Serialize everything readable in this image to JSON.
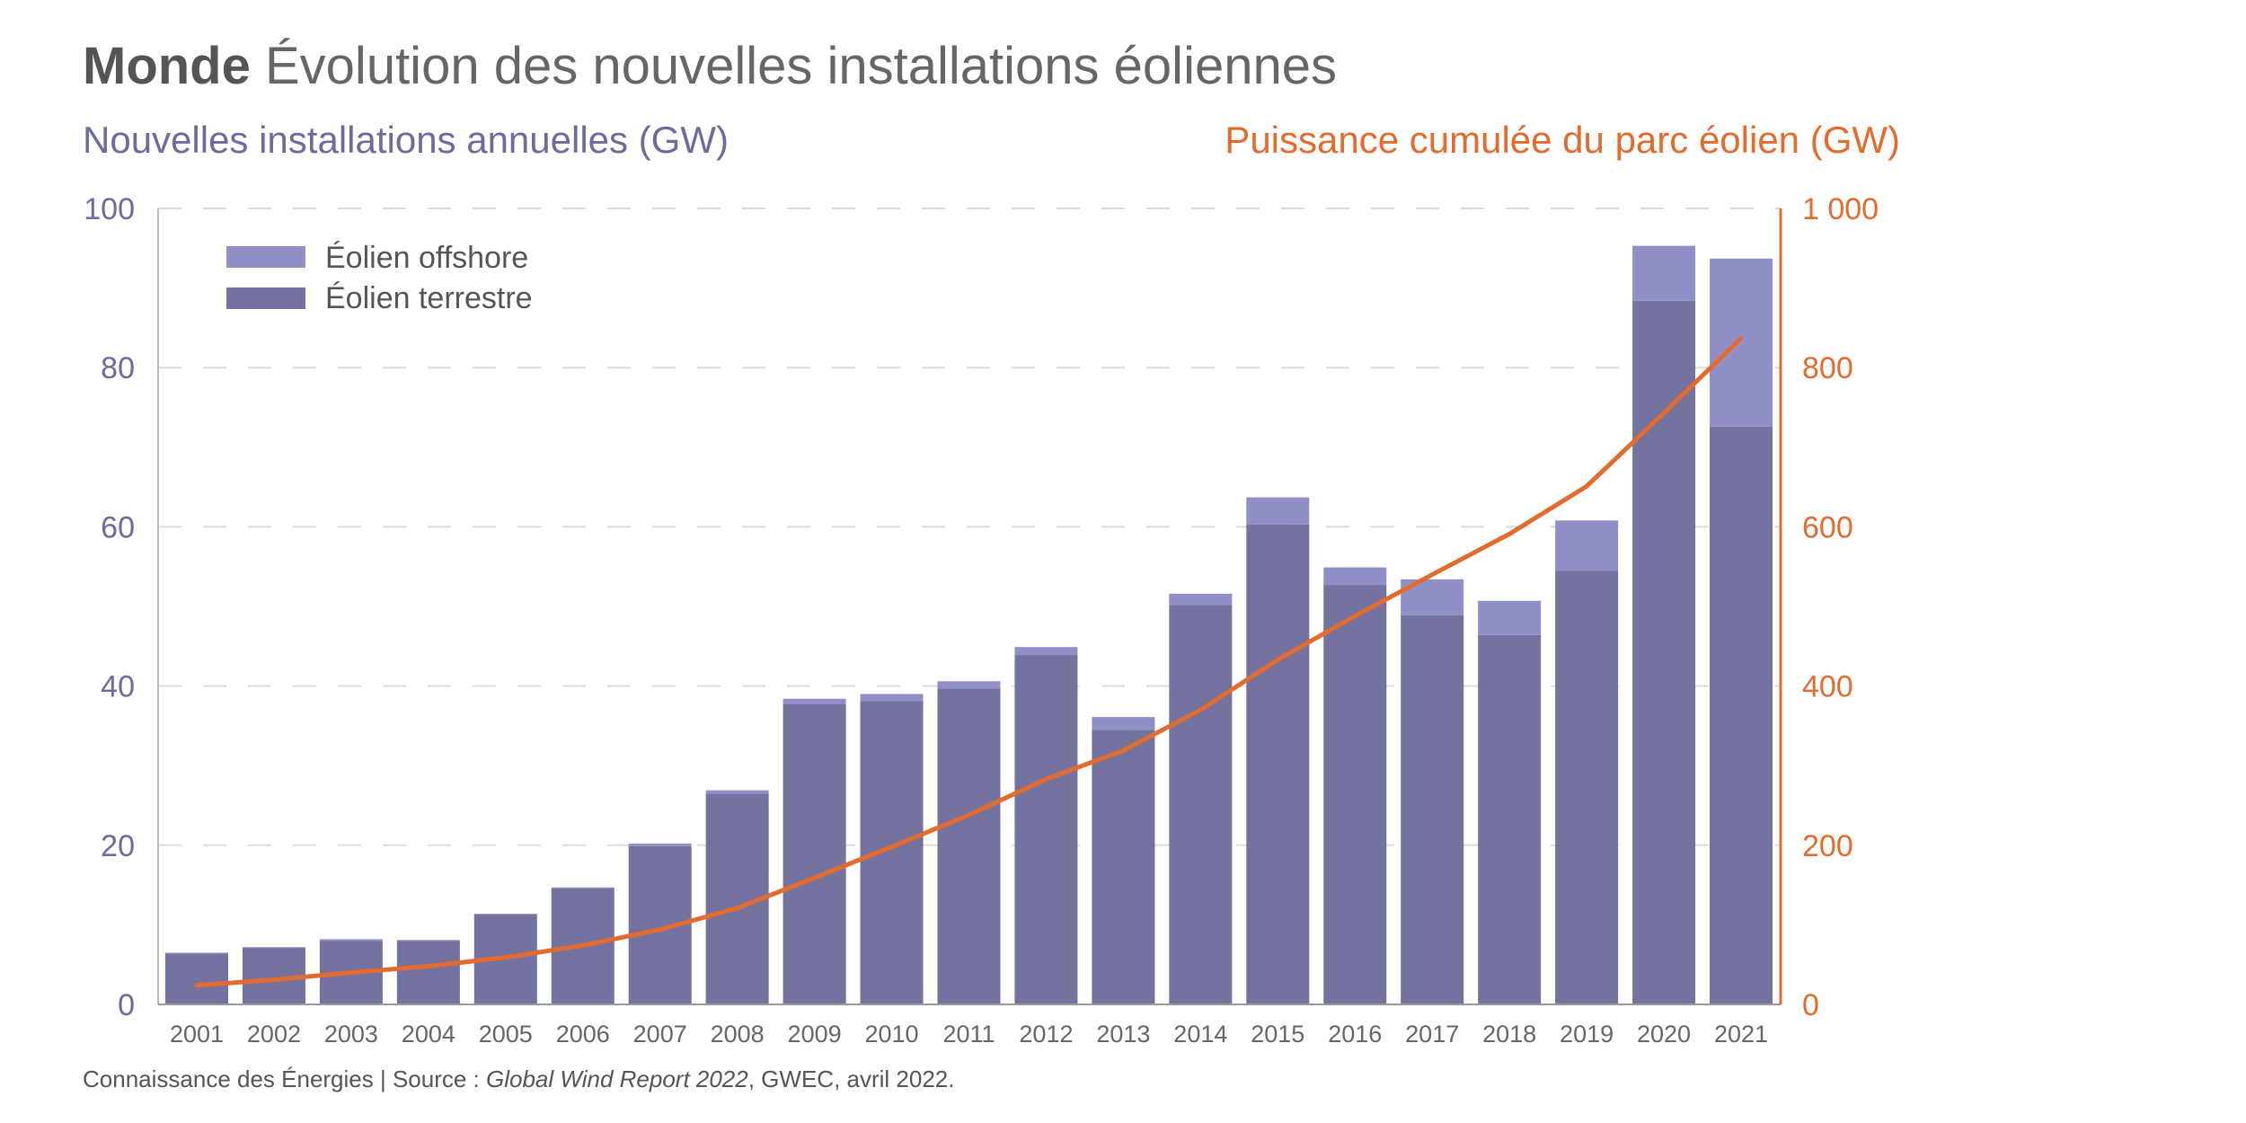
{
  "title": {
    "bold": "Monde",
    "rest": "Évolution des nouvelles installations éoliennes"
  },
  "footer": {
    "prefix": "Connaissance des Énergies | Source : ",
    "italic": "Global Wind Report 2022",
    "suffix": ", GWEC, avril 2022."
  },
  "colors": {
    "onshore": "#74729f",
    "offshore": "#918fc8",
    "cumulative": "#e46b2e",
    "left_axis": "#6d6a9c",
    "right_axis": "#e46b2e"
  },
  "chart_data": {
    "type": "bar",
    "stacked": true,
    "categories": [
      "2001",
      "2002",
      "2003",
      "2004",
      "2005",
      "2006",
      "2007",
      "2008",
      "2009",
      "2010",
      "2011",
      "2012",
      "2013",
      "2014",
      "2015",
      "2016",
      "2017",
      "2018",
      "2019",
      "2020",
      "2021"
    ],
    "ylabel": "Nouvelles installations annuelles (GW)",
    "y2label": "Puissance cumulée du parc éolien (GW)",
    "ylim": [
      0,
      100
    ],
    "y2lim": [
      0,
      1000
    ],
    "yticks": [
      "0",
      "20",
      "40",
      "60",
      "80",
      "100"
    ],
    "y2ticks": [
      "0",
      "200",
      "400",
      "600",
      "800",
      "1 000"
    ],
    "grid": true,
    "legend_position": "top-left",
    "series": [
      {
        "name": "Éolien terrestre",
        "type": "bar",
        "axis": "left",
        "values": [
          6.4,
          7.1,
          8.0,
          8.0,
          11.3,
          14.6,
          19.9,
          26.5,
          37.7,
          38.1,
          39.7,
          43.9,
          34.5,
          50.2,
          60.3,
          52.7,
          48.9,
          46.4,
          54.5,
          88.4,
          72.6
        ]
      },
      {
        "name": "Éolien offshore",
        "type": "bar",
        "axis": "left",
        "values": [
          0.1,
          0.1,
          0.2,
          0.1,
          0.1,
          0.1,
          0.3,
          0.4,
          0.7,
          0.9,
          0.9,
          1.0,
          1.6,
          1.4,
          3.4,
          2.2,
          4.5,
          4.3,
          6.3,
          6.9,
          21.1
        ]
      },
      {
        "type": "line",
        "axis": "right",
        "values": [
          24,
          31,
          40,
          48,
          59,
          74,
          94,
          121,
          159,
          198,
          238,
          283,
          319,
          370,
          433,
          488,
          540,
          591,
          651,
          743,
          837
        ]
      }
    ]
  }
}
